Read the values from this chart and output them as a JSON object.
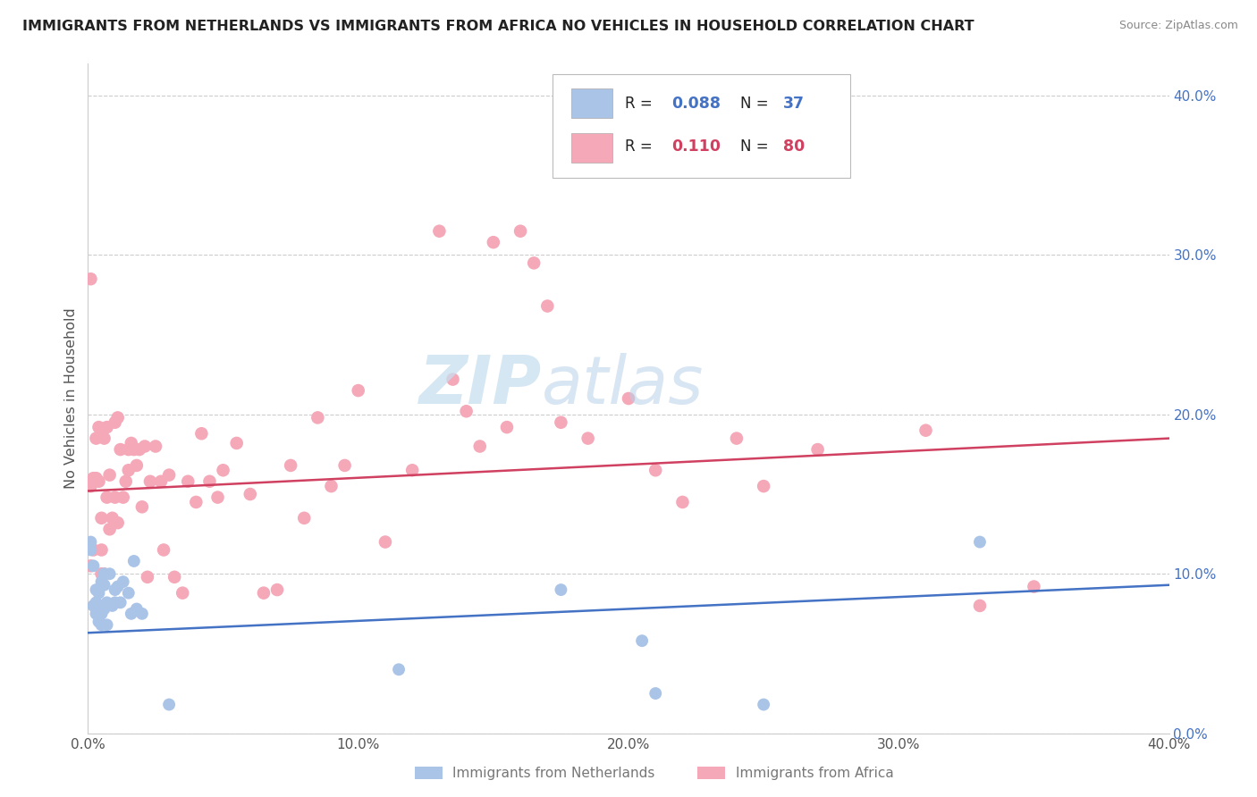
{
  "title": "IMMIGRANTS FROM NETHERLANDS VS IMMIGRANTS FROM AFRICA NO VEHICLES IN HOUSEHOLD CORRELATION CHART",
  "source": "Source: ZipAtlas.com",
  "ylabel": "No Vehicles in Household",
  "xlim": [
    0.0,
    0.4
  ],
  "ylim": [
    0.0,
    0.42
  ],
  "xticks": [
    0.0,
    0.1,
    0.2,
    0.3,
    0.4
  ],
  "yticks": [
    0.0,
    0.1,
    0.2,
    0.3,
    0.4
  ],
  "color_netherlands": "#aac4e8",
  "color_africa": "#f4a8b8",
  "line_color_netherlands": "#4472c4",
  "line_color_africa": "#d04060",
  "watermark_zip": "ZIP",
  "watermark_atlas": "atlas",
  "nl_x": [
    0.001,
    0.001,
    0.002,
    0.002,
    0.003,
    0.003,
    0.003,
    0.004,
    0.004,
    0.005,
    0.005,
    0.005,
    0.005,
    0.006,
    0.006,
    0.006,
    0.007,
    0.007,
    0.008,
    0.009,
    0.01,
    0.01,
    0.011,
    0.012,
    0.013,
    0.015,
    0.016,
    0.017,
    0.018,
    0.02,
    0.03,
    0.115,
    0.175,
    0.205,
    0.21,
    0.25,
    0.33
  ],
  "nl_y": [
    0.115,
    0.12,
    0.105,
    0.08,
    0.075,
    0.09,
    0.082,
    0.07,
    0.088,
    0.095,
    0.08,
    0.075,
    0.068,
    0.1,
    0.093,
    0.078,
    0.082,
    0.068,
    0.1,
    0.08,
    0.09,
    0.082,
    0.092,
    0.082,
    0.095,
    0.088,
    0.075,
    0.108,
    0.078,
    0.075,
    0.018,
    0.04,
    0.09,
    0.058,
    0.025,
    0.018,
    0.12
  ],
  "af_x": [
    0.001,
    0.001,
    0.001,
    0.002,
    0.002,
    0.003,
    0.003,
    0.004,
    0.004,
    0.005,
    0.005,
    0.005,
    0.006,
    0.006,
    0.007,
    0.007,
    0.008,
    0.008,
    0.009,
    0.01,
    0.01,
    0.011,
    0.011,
    0.012,
    0.013,
    0.014,
    0.015,
    0.015,
    0.016,
    0.017,
    0.018,
    0.019,
    0.02,
    0.021,
    0.022,
    0.023,
    0.025,
    0.027,
    0.028,
    0.03,
    0.032,
    0.035,
    0.037,
    0.04,
    0.042,
    0.045,
    0.048,
    0.05,
    0.055,
    0.06,
    0.065,
    0.07,
    0.075,
    0.08,
    0.085,
    0.09,
    0.095,
    0.1,
    0.11,
    0.12,
    0.13,
    0.135,
    0.14,
    0.145,
    0.15,
    0.155,
    0.16,
    0.165,
    0.17,
    0.175,
    0.185,
    0.2,
    0.21,
    0.22,
    0.24,
    0.25,
    0.27,
    0.31,
    0.33,
    0.35
  ],
  "af_y": [
    0.285,
    0.155,
    0.105,
    0.16,
    0.115,
    0.185,
    0.16,
    0.192,
    0.158,
    0.135,
    0.115,
    0.1,
    0.185,
    0.1,
    0.192,
    0.148,
    0.162,
    0.128,
    0.135,
    0.195,
    0.148,
    0.198,
    0.132,
    0.178,
    0.148,
    0.158,
    0.178,
    0.165,
    0.182,
    0.178,
    0.168,
    0.178,
    0.142,
    0.18,
    0.098,
    0.158,
    0.18,
    0.158,
    0.115,
    0.162,
    0.098,
    0.088,
    0.158,
    0.145,
    0.188,
    0.158,
    0.148,
    0.165,
    0.182,
    0.15,
    0.088,
    0.09,
    0.168,
    0.135,
    0.198,
    0.155,
    0.168,
    0.215,
    0.12,
    0.165,
    0.315,
    0.222,
    0.202,
    0.18,
    0.308,
    0.192,
    0.315,
    0.295,
    0.268,
    0.195,
    0.185,
    0.21,
    0.165,
    0.145,
    0.185,
    0.155,
    0.178,
    0.19,
    0.08,
    0.092
  ],
  "nl_line_x0": 0.0,
  "nl_line_x1": 0.4,
  "nl_line_y0": 0.063,
  "nl_line_y1": 0.093,
  "af_line_x0": 0.0,
  "af_line_x1": 0.4,
  "af_line_y0": 0.152,
  "af_line_y1": 0.185
}
